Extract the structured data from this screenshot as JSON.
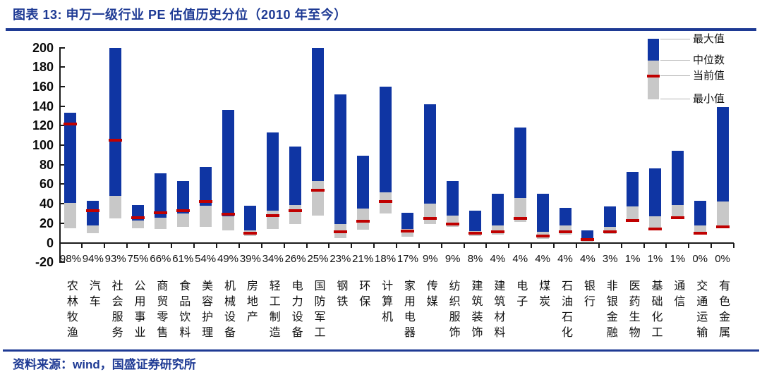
{
  "header": {
    "title": "图表 13:  申万一级行业 PE 估值历史分位（2010 年至今）"
  },
  "footer": {
    "source": "资料来源：wind，国盛证券研究所"
  },
  "colors": {
    "bar_max_blue": "#0f35a3",
    "bar_median_gray": "#c8c8c8",
    "current_red": "#c00000",
    "accent_navy": "#1e3a94"
  },
  "chart_data": {
    "type": "bar",
    "subtype": "range-bar (min–median–max with current-value marker)",
    "title": "申万一级行业 PE 估值历史分位（2010 年至今）",
    "xlabel": "",
    "ylabel": "",
    "ylim": [
      -20,
      200
    ],
    "y_ticks": [
      200,
      180,
      160,
      140,
      120,
      100,
      80,
      60,
      40,
      20,
      0,
      -20
    ],
    "grid": false,
    "legend_position": "top-right",
    "legend": [
      "最大值",
      "中位数",
      "当前值",
      "最小值"
    ],
    "categories": [
      "农林牧渔",
      "汽车",
      "社会服务",
      "公用事业",
      "商贸零售",
      "食品饮料",
      "美容护理",
      "机械设备",
      "房地产",
      "轻工制造",
      "电力设备",
      "国防军工",
      "钢铁",
      "环保",
      "计算机",
      "家用电器",
      "传媒",
      "纺织服饰",
      "建筑装饰",
      "建筑材料",
      "电子",
      "煤炭",
      "石油石化",
      "银行",
      "非银金融",
      "医药生物",
      "基础化工",
      "通信",
      "交通运输",
      "有色金属"
    ],
    "percentiles": [
      "98%",
      "94%",
      "93%",
      "75%",
      "66%",
      "61%",
      "54%",
      "49%",
      "39%",
      "34%",
      "26%",
      "25%",
      "23%",
      "21%",
      "18%",
      "17%",
      "9%",
      "9%",
      "8%",
      "4%",
      "4%",
      "4%",
      "4%",
      "4%",
      "3%",
      "1%",
      "1%",
      "1%",
      "0%",
      "0%"
    ],
    "series": [
      {
        "name": "最大值",
        "values": [
          133,
          43,
          200,
          39,
          71,
          63,
          78,
          136,
          38,
          113,
          99,
          200,
          152,
          89,
          160,
          31,
          142,
          63,
          33,
          50,
          118,
          50,
          36,
          13,
          37,
          73,
          76,
          94,
          43,
          139
        ]
      },
      {
        "name": "中位数",
        "values": [
          41,
          18,
          48,
          23,
          26,
          30,
          38,
          27,
          13,
          33,
          39,
          63,
          19,
          35,
          52,
          14,
          40,
          28,
          12,
          18,
          46,
          11,
          18,
          5,
          16,
          37,
          27,
          39,
          18,
          42
        ]
      },
      {
        "name": "当前值",
        "values": [
          122,
          33,
          105,
          26,
          31,
          33,
          42,
          29,
          10,
          28,
          33,
          54,
          11,
          22,
          42,
          12,
          25,
          19,
          10,
          11,
          25,
          7,
          11,
          3,
          11,
          23,
          14,
          26,
          10,
          16
        ]
      },
      {
        "name": "最小值",
        "values": [
          15,
          10,
          25,
          15,
          14,
          16,
          16,
          13,
          7,
          14,
          19,
          28,
          5,
          13,
          30,
          6,
          19,
          16,
          7,
          8,
          21,
          4,
          8,
          1,
          9,
          23,
          14,
          26,
          10,
          16
        ]
      }
    ]
  }
}
